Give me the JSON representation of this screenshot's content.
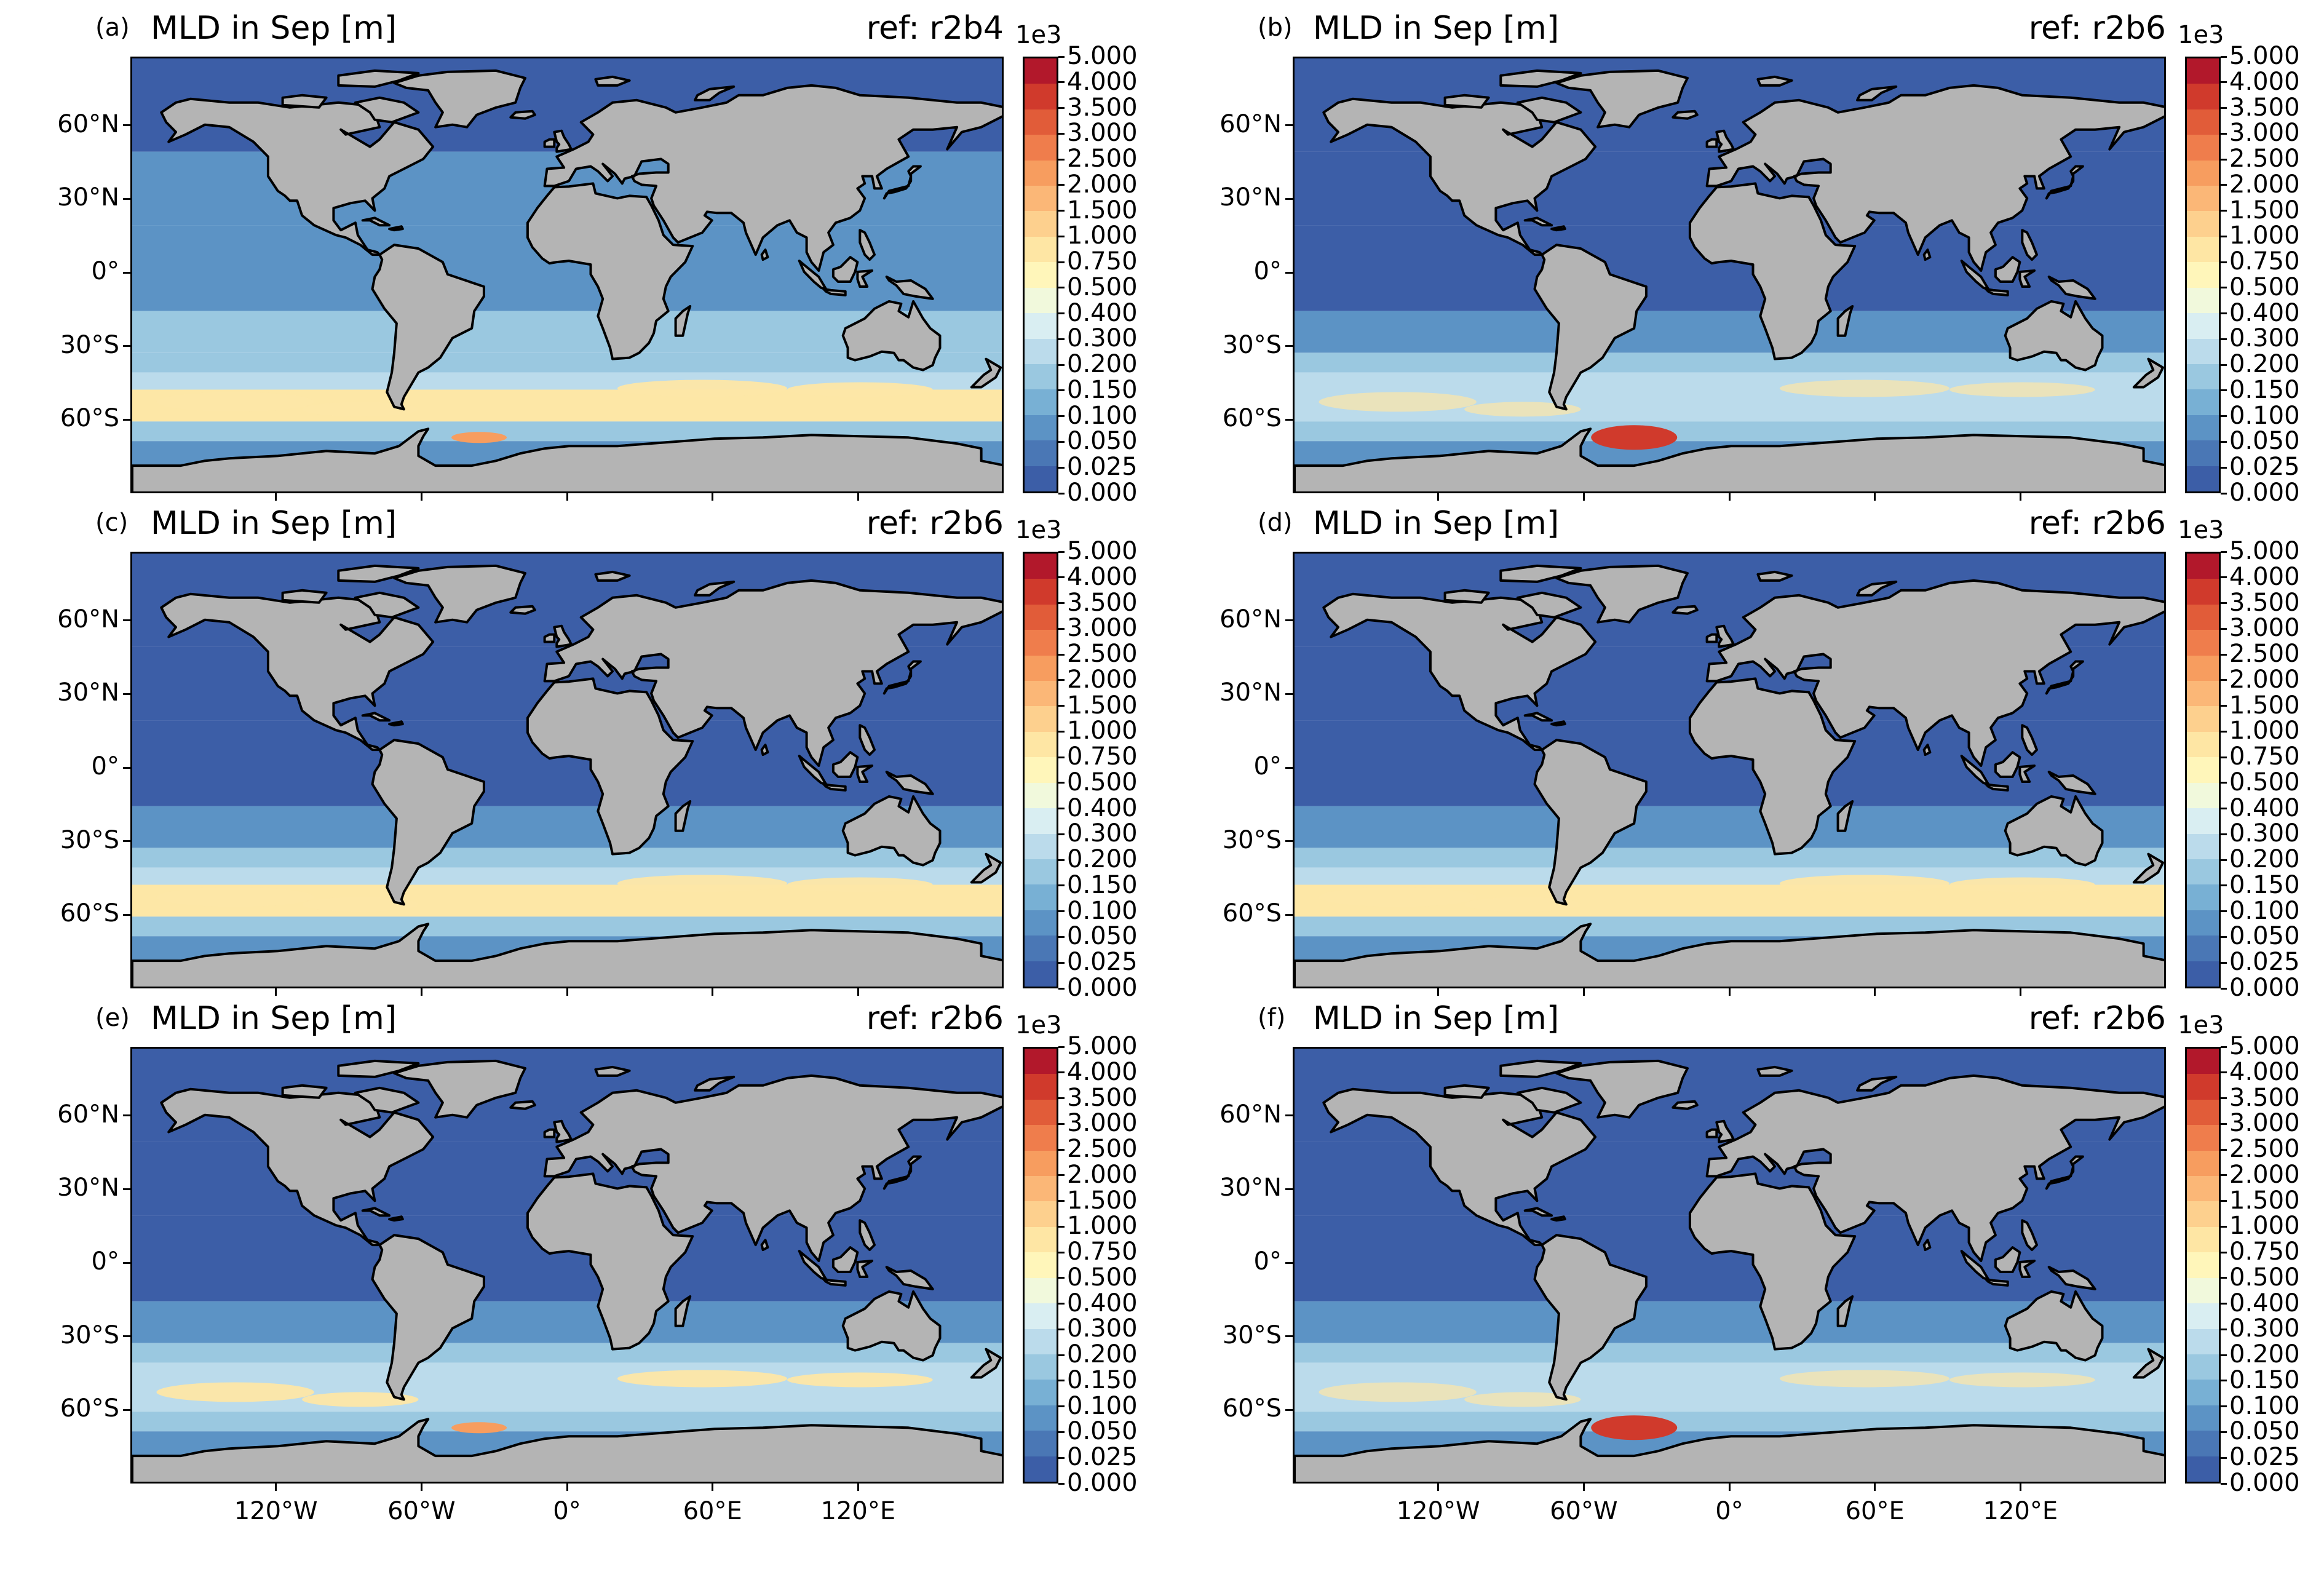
{
  "figure": {
    "panels": [
      {
        "label": "(a)",
        "title": "MLD in Sep [m]",
        "ref": "ref: r2b4",
        "variant": "a"
      },
      {
        "label": "(b)",
        "title": "MLD in Sep [m]",
        "ref": "ref: r2b6",
        "variant": "b"
      },
      {
        "label": "(c)",
        "title": "MLD in Sep [m]",
        "ref": "ref: r2b6",
        "variant": "c"
      },
      {
        "label": "(d)",
        "title": "MLD in Sep [m]",
        "ref": "ref: r2b6",
        "variant": "d"
      },
      {
        "label": "(e)",
        "title": "MLD in Sep [m]",
        "ref": "ref: r2b6",
        "variant": "e"
      },
      {
        "label": "(f)",
        "title": "MLD in Sep [m]",
        "ref": "ref: r2b6",
        "variant": "f"
      }
    ],
    "lat_ticks": [
      "60°N",
      "30°N",
      "0°",
      "30°S",
      "60°S"
    ],
    "lon_ticks": [
      "120°W",
      "60°W",
      "0°",
      "60°E",
      "120°E"
    ],
    "colorbar": {
      "exponent": "1e3",
      "levels": [
        "5.000",
        "4.000",
        "3.500",
        "3.000",
        "2.500",
        "2.000",
        "1.500",
        "1.000",
        "0.750",
        "0.500",
        "0.400",
        "0.300",
        "0.200",
        "0.150",
        "0.100",
        "0.050",
        "0.025",
        "0.000"
      ],
      "colors": [
        "#b2182b",
        "#d03a2c",
        "#e15c39",
        "#ef7d4c",
        "#f79d5f",
        "#fbb777",
        "#fdd08e",
        "#fee6a4",
        "#fff6ba",
        "#f1f9dc",
        "#d9eef2",
        "#bbdbeb",
        "#9ac8e0",
        "#78b0d4",
        "#5c93c5",
        "#4a77b5",
        "#3c5ea7"
      ]
    },
    "colors": {
      "land": "#b4b4b4",
      "ocean_deep_blue": "#3c5ea7",
      "ocean_blue": "#5c93c5",
      "ocean_light": "#9ac8e0",
      "southern_pale": "#bbdbeb",
      "southern_yellow": "#fde7a6",
      "deep_convection": "#d03a2c",
      "coastline": "#000000"
    }
  }
}
